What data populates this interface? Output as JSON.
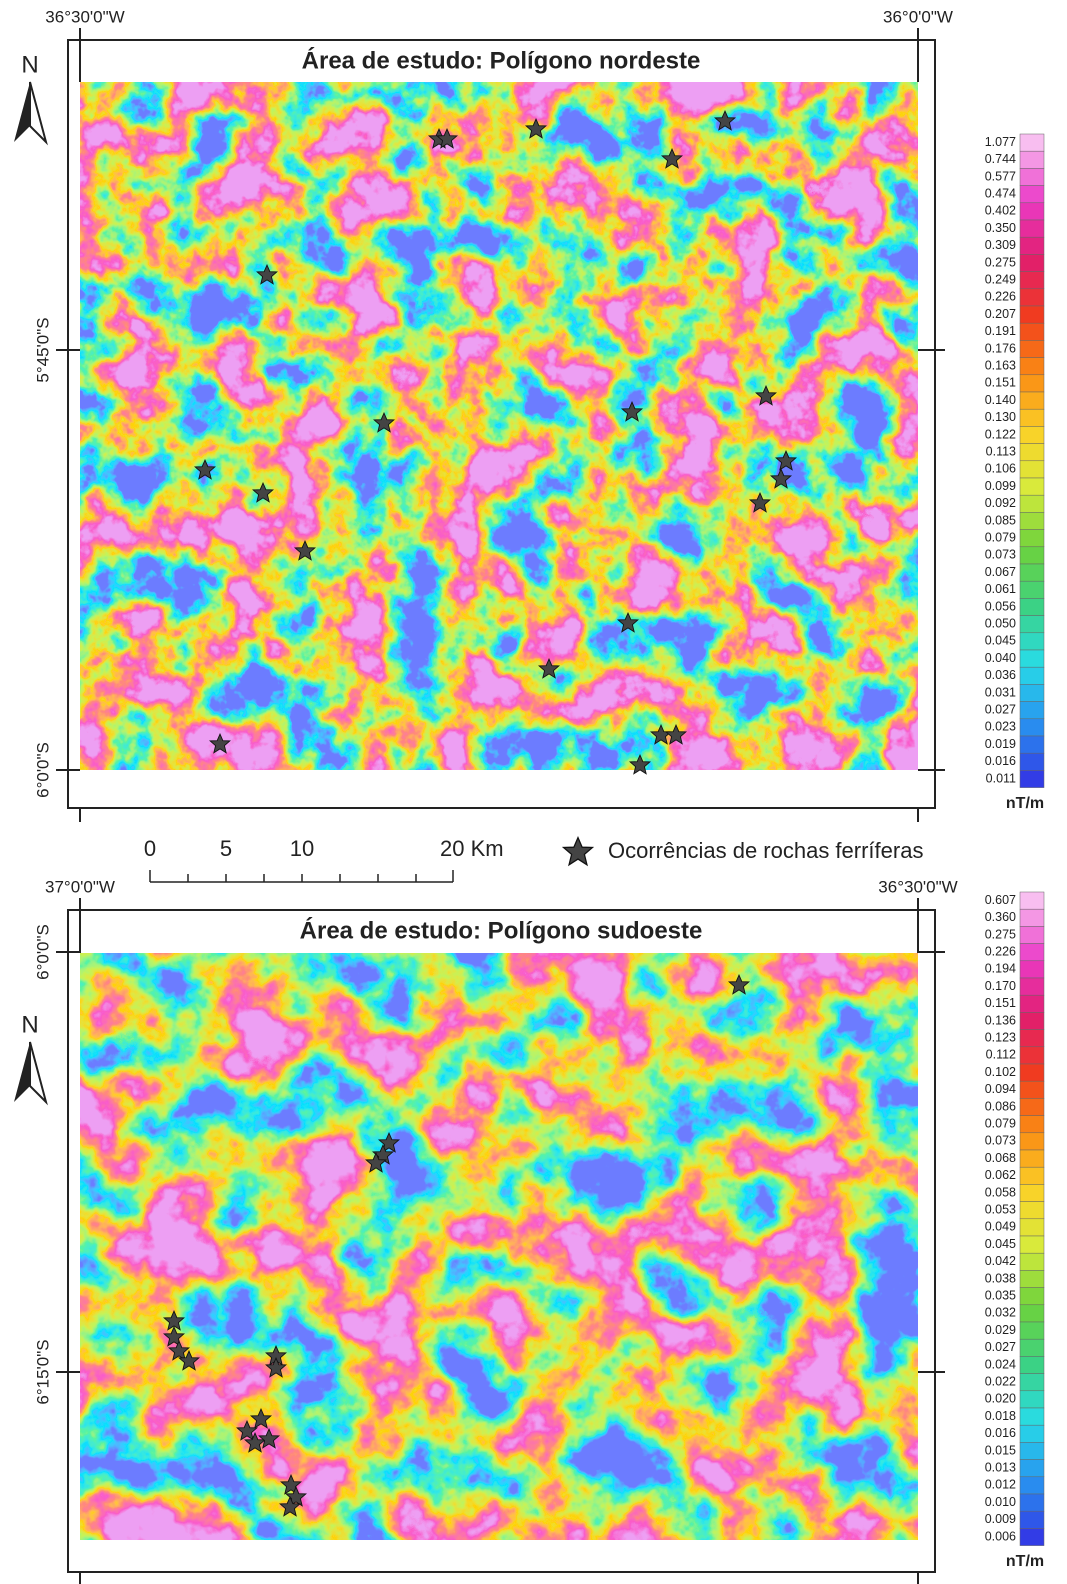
{
  "north_label": "N",
  "maps": [
    {
      "title": "Área de estudo: Polígono nordeste",
      "top_labels": [
        "36°30'0\"W",
        "36°0'0\"W"
      ],
      "left_labels": [
        "5°45'0\"S",
        "6°0'0\"S"
      ],
      "legend": {
        "unit": "nT/m",
        "labels": [
          "1.077",
          "0.744",
          "0.577",
          "0.474",
          "0.402",
          "0.350",
          "0.309",
          "0.275",
          "0.249",
          "0.226",
          "0.207",
          "0.191",
          "0.176",
          "0.163",
          "0.151",
          "0.140",
          "0.130",
          "0.122",
          "0.113",
          "0.106",
          "0.099",
          "0.092",
          "0.085",
          "0.079",
          "0.073",
          "0.067",
          "0.061",
          "0.056",
          "0.050",
          "0.045",
          "0.040",
          "0.036",
          "0.031",
          "0.027",
          "0.023",
          "0.019",
          "0.016",
          "0.011"
        ]
      }
    },
    {
      "title": "Área de estudo: Polígono sudoeste",
      "top_labels": [
        "37°0'0\"W",
        "36°30'0\"W"
      ],
      "left_labels": [
        "6°0'0\"S",
        "6°15'0\"S"
      ],
      "legend": {
        "unit": "nT/m",
        "labels": [
          "0.607",
          "0.360",
          "0.275",
          "0.226",
          "0.194",
          "0.170",
          "0.151",
          "0.136",
          "0.123",
          "0.112",
          "0.102",
          "0.094",
          "0.086",
          "0.079",
          "0.073",
          "0.068",
          "0.062",
          "0.058",
          "0.053",
          "0.049",
          "0.045",
          "0.042",
          "0.038",
          "0.035",
          "0.032",
          "0.029",
          "0.027",
          "0.024",
          "0.022",
          "0.020",
          "0.018",
          "0.016",
          "0.015",
          "0.013",
          "0.012",
          "0.010",
          "0.009",
          "0.006"
        ]
      }
    }
  ],
  "scale_bar": {
    "labels": [
      "0",
      "5",
      "10",
      "20 Km"
    ]
  },
  "star_legend": "Ocorrências de rochas ferríferas"
}
